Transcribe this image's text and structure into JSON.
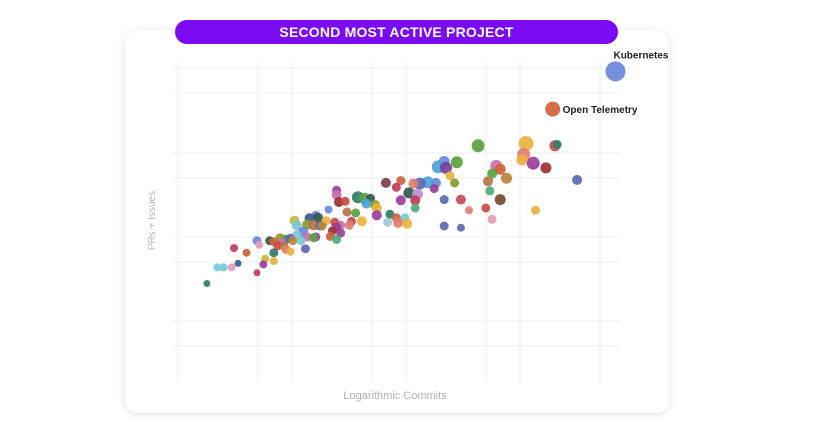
{
  "chart_data": {
    "type": "scatter",
    "title": "SECOND MOST ACTIVE PROJECT",
    "xlabel": "Logarithmic Commits",
    "ylabel": "PRs + Issues",
    "xscale": "log",
    "yscale": "log",
    "xlim": [
      0,
      100
    ],
    "ylim": [
      0,
      100
    ],
    "grid": true,
    "annotations": [
      {
        "label": "Kubernetes",
        "point_index": 0
      },
      {
        "label": "Open Telemetry",
        "point_index": 1
      }
    ],
    "points": [
      {
        "x": 99.0,
        "y": 95.4,
        "s": 10,
        "c": "#6a87d8"
      },
      {
        "x": 85.1,
        "y": 84.1,
        "s": 7.5,
        "c": "#d0623a"
      },
      {
        "x": 79.2,
        "y": 73.8,
        "s": 7.5,
        "c": "#e8b23f"
      },
      {
        "x": 78.7,
        "y": 70.5,
        "s": 6.5,
        "c": "#e07f6e"
      },
      {
        "x": 78.3,
        "y": 68.9,
        "s": 5.5,
        "c": "#e8b23f"
      },
      {
        "x": 85.6,
        "y": 73.1,
        "s": 5.5,
        "c": "#cc4a4a"
      },
      {
        "x": 86.1,
        "y": 73.5,
        "s": 4.5,
        "c": "#2f7d6a"
      },
      {
        "x": 68.6,
        "y": 73.1,
        "s": 6.5,
        "c": "#5aa23e"
      },
      {
        "x": 80.8,
        "y": 67.9,
        "s": 6.5,
        "c": "#9b3d9b"
      },
      {
        "x": 83.6,
        "y": 66.5,
        "s": 5.5,
        "c": "#9e2f2f"
      },
      {
        "x": 90.5,
        "y": 62.9,
        "s": 5,
        "c": "#5c68b3"
      },
      {
        "x": 61.1,
        "y": 68.4,
        "s": 5.5,
        "c": "#6a87d8"
      },
      {
        "x": 63.9,
        "y": 68.2,
        "s": 6,
        "c": "#5aa23e"
      },
      {
        "x": 59.8,
        "y": 66.8,
        "s": 6.5,
        "c": "#4aa3d8"
      },
      {
        "x": 61.5,
        "y": 66.5,
        "s": 6,
        "c": "#7a3fa0"
      },
      {
        "x": 72.6,
        "y": 67.1,
        "s": 6,
        "c": "#c96fa8"
      },
      {
        "x": 73.5,
        "y": 66.1,
        "s": 5.5,
        "c": "#d0623a"
      },
      {
        "x": 71.7,
        "y": 64.8,
        "s": 5,
        "c": "#5aa23e"
      },
      {
        "x": 74.9,
        "y": 63.4,
        "s": 5.5,
        "c": "#b8863b"
      },
      {
        "x": 70.8,
        "y": 62.5,
        "s": 5,
        "c": "#b8734a"
      },
      {
        "x": 62.4,
        "y": 64.2,
        "s": 4.5,
        "c": "#e8b23f"
      },
      {
        "x": 63.4,
        "y": 62.0,
        "s": 4.5,
        "c": "#8a9b2b"
      },
      {
        "x": 59.3,
        "y": 62.0,
        "s": 5,
        "c": "#6a87d8"
      },
      {
        "x": 57.5,
        "y": 62.2,
        "s": 6,
        "c": "#4aa3d8"
      },
      {
        "x": 55.7,
        "y": 61.8,
        "s": 6,
        "c": "#5c68b3"
      },
      {
        "x": 54.3,
        "y": 61.8,
        "s": 5,
        "c": "#e07f6e"
      },
      {
        "x": 51.5,
        "y": 62.7,
        "s": 4.5,
        "c": "#d0623a"
      },
      {
        "x": 48.2,
        "y": 62.0,
        "s": 5,
        "c": "#7a3f4a"
      },
      {
        "x": 50.5,
        "y": 60.7,
        "s": 4.5,
        "c": "#c23a5a"
      },
      {
        "x": 58.9,
        "y": 60.3,
        "s": 4.5,
        "c": "#9b3d9b"
      },
      {
        "x": 71.2,
        "y": 59.6,
        "s": 4.5,
        "c": "#4aab7a"
      },
      {
        "x": 53.3,
        "y": 59.0,
        "s": 5.5,
        "c": "#2f5b4a"
      },
      {
        "x": 55.2,
        "y": 58.6,
        "s": 5.5,
        "c": "#b88fd8"
      },
      {
        "x": 37.3,
        "y": 59.8,
        "s": 4.5,
        "c": "#9b3d9b"
      },
      {
        "x": 37.3,
        "y": 58.4,
        "s": 5,
        "c": "#c96fa8"
      },
      {
        "x": 42.0,
        "y": 57.7,
        "s": 6,
        "c": "#2f7d6a"
      },
      {
        "x": 43.4,
        "y": 57.4,
        "s": 5.5,
        "c": "#5aa23e"
      },
      {
        "x": 44.8,
        "y": 57.4,
        "s": 4.5,
        "c": "#2f5b4a"
      },
      {
        "x": 43.9,
        "y": 55.8,
        "s": 5,
        "c": "#4aa3d8"
      },
      {
        "x": 45.8,
        "y": 55.4,
        "s": 5,
        "c": "#8a9b2b"
      },
      {
        "x": 51.5,
        "y": 56.8,
        "s": 5,
        "c": "#9b3d9b"
      },
      {
        "x": 54.7,
        "y": 56.8,
        "s": 5,
        "c": "#c23a5a"
      },
      {
        "x": 61.1,
        "y": 57.0,
        "s": 4.5,
        "c": "#5c68b3"
      },
      {
        "x": 64.8,
        "y": 57.0,
        "s": 5,
        "c": "#c94a5a"
      },
      {
        "x": 73.5,
        "y": 57.0,
        "s": 5.5,
        "c": "#7a4a2f"
      },
      {
        "x": 37.8,
        "y": 56.3,
        "s": 5,
        "c": "#9e2f2f"
      },
      {
        "x": 39.2,
        "y": 56.5,
        "s": 4.5,
        "c": "#cc4a4a"
      },
      {
        "x": 46.2,
        "y": 54.5,
        "s": 5,
        "c": "#e8b23f"
      },
      {
        "x": 54.7,
        "y": 54.5,
        "s": 4.5,
        "c": "#4aab7a"
      },
      {
        "x": 70.3,
        "y": 54.5,
        "s": 4.5,
        "c": "#cc4a4a"
      },
      {
        "x": 66.6,
        "y": 53.8,
        "s": 4,
        "c": "#e07f6e"
      },
      {
        "x": 81.3,
        "y": 53.8,
        "s": 4.5,
        "c": "#e8b23f"
      },
      {
        "x": 35.5,
        "y": 54.0,
        "s": 4,
        "c": "#6a87d8"
      },
      {
        "x": 39.6,
        "y": 53.3,
        "s": 4.5,
        "c": "#b8734a"
      },
      {
        "x": 41.5,
        "y": 53.0,
        "s": 4.5,
        "c": "#5aa23e"
      },
      {
        "x": 32.7,
        "y": 52.3,
        "s": 4.5,
        "c": "#6a87d8"
      },
      {
        "x": 33.2,
        "y": 51.6,
        "s": 5,
        "c": "#2f5b4a"
      },
      {
        "x": 31.3,
        "y": 51.4,
        "s": 5,
        "c": "#3a5b8a"
      },
      {
        "x": 46.2,
        "y": 52.3,
        "s": 5,
        "c": "#9b3d9b"
      },
      {
        "x": 49.1,
        "y": 52.6,
        "s": 4.5,
        "c": "#2f7d6a"
      },
      {
        "x": 50.5,
        "y": 51.6,
        "s": 4.5,
        "c": "#d0623a"
      },
      {
        "x": 52.4,
        "y": 51.6,
        "s": 4.5,
        "c": "#7bc8d8"
      },
      {
        "x": 71.7,
        "y": 51.1,
        "s": 4.5,
        "c": "#e59ab8"
      },
      {
        "x": 28.0,
        "y": 50.7,
        "s": 5,
        "c": "#c9b63a"
      },
      {
        "x": 35.0,
        "y": 50.7,
        "s": 4.5,
        "c": "#e8b23f"
      },
      {
        "x": 36.9,
        "y": 50.2,
        "s": 4.5,
        "c": "#cc4a4a"
      },
      {
        "x": 40.6,
        "y": 50.5,
        "s": 4.5,
        "c": "#c94a5a"
      },
      {
        "x": 42.9,
        "y": 50.5,
        "s": 5,
        "c": "#e8b23f"
      },
      {
        "x": 48.6,
        "y": 50.2,
        "s": 4.5,
        "c": "#9ec8d8"
      },
      {
        "x": 50.9,
        "y": 50.0,
        "s": 5,
        "c": "#e07f6e"
      },
      {
        "x": 52.9,
        "y": 49.8,
        "s": 5,
        "c": "#e8b23f"
      },
      {
        "x": 28.5,
        "y": 49.3,
        "s": 5,
        "c": "#7bc8d8"
      },
      {
        "x": 30.8,
        "y": 49.5,
        "s": 5,
        "c": "#8a9b2b"
      },
      {
        "x": 32.2,
        "y": 49.3,
        "s": 5,
        "c": "#b8734a"
      },
      {
        "x": 33.6,
        "y": 49.1,
        "s": 4.5,
        "c": "#5c68b3"
      },
      {
        "x": 34.1,
        "y": 49.1,
        "s": 4.5,
        "c": "#b8863b"
      },
      {
        "x": 38.2,
        "y": 49.3,
        "s": 4.5,
        "c": "#c96fa8"
      },
      {
        "x": 40.1,
        "y": 49.3,
        "s": 4.5,
        "c": "#e07f6e"
      },
      {
        "x": 37.3,
        "y": 48.9,
        "s": 4.5,
        "c": "#9b3d9b"
      },
      {
        "x": 61.1,
        "y": 49.1,
        "s": 4.5,
        "c": "#5c68b3"
      },
      {
        "x": 64.8,
        "y": 48.6,
        "s": 4,
        "c": "#5c68b3"
      },
      {
        "x": 29.9,
        "y": 47.4,
        "s": 5,
        "c": "#6a87d8"
      },
      {
        "x": 36.4,
        "y": 47.7,
        "s": 4.5,
        "c": "#9e2f2f"
      },
      {
        "x": 28.5,
        "y": 46.5,
        "s": 4.5,
        "c": "#7bc8d8"
      },
      {
        "x": 38.2,
        "y": 47.0,
        "s": 4.5,
        "c": "#9b3d9b"
      },
      {
        "x": 30.8,
        "y": 45.8,
        "s": 4.5,
        "c": "#c96fa8"
      },
      {
        "x": 32.7,
        "y": 45.8,
        "s": 4.5,
        "c": "#9b3d9b"
      },
      {
        "x": 32.2,
        "y": 45.6,
        "s": 4.5,
        "c": "#5aa23e"
      },
      {
        "x": 35.9,
        "y": 46.0,
        "s": 4.5,
        "c": "#d0623a"
      },
      {
        "x": 37.3,
        "y": 45.1,
        "s": 4.5,
        "c": "#4aab7a"
      },
      {
        "x": 26.1,
        "y": 45.1,
        "s": 4.5,
        "c": "#2f7d6a"
      },
      {
        "x": 27.1,
        "y": 45.6,
        "s": 4,
        "c": "#5c68b3"
      },
      {
        "x": 24.8,
        "y": 45.6,
        "s": 4.5,
        "c": "#8a9b2b"
      },
      {
        "x": 22.5,
        "y": 44.7,
        "s": 4.5,
        "c": "#2f5b4a"
      },
      {
        "x": 23.4,
        "y": 44.4,
        "s": 4.5,
        "c": "#d0623a"
      },
      {
        "x": 27.6,
        "y": 44.7,
        "s": 4.5,
        "c": "#b8863b"
      },
      {
        "x": 29.4,
        "y": 44.7,
        "s": 4.5,
        "c": "#7bc8d8"
      },
      {
        "x": 25.2,
        "y": 44.2,
        "s": 4.5,
        "c": "#c96fa8"
      },
      {
        "x": 19.7,
        "y": 44.7,
        "s": 4.5,
        "c": "#6a87d8"
      },
      {
        "x": 20.2,
        "y": 43.5,
        "s": 4,
        "c": "#e59ab8"
      },
      {
        "x": 24.3,
        "y": 43.2,
        "s": 4.5,
        "c": "#cc4a4a"
      },
      {
        "x": 25.7,
        "y": 43.0,
        "s": 4.5,
        "c": "#b8734a"
      },
      {
        "x": 26.1,
        "y": 42.1,
        "s": 4.5,
        "c": "#e07f6e"
      },
      {
        "x": 27.1,
        "y": 41.4,
        "s": 4,
        "c": "#e8b23f"
      },
      {
        "x": 30.4,
        "y": 42.3,
        "s": 4.5,
        "c": "#5c68b3"
      },
      {
        "x": 23.4,
        "y": 41.1,
        "s": 4.5,
        "c": "#2f7d6a"
      },
      {
        "x": 14.6,
        "y": 42.5,
        "s": 4,
        "c": "#c23a5a"
      },
      {
        "x": 17.4,
        "y": 41.1,
        "s": 4,
        "c": "#d0623a"
      },
      {
        "x": 21.5,
        "y": 39.3,
        "s": 4,
        "c": "#c9b63a"
      },
      {
        "x": 23.4,
        "y": 38.6,
        "s": 4,
        "c": "#e8b23f"
      },
      {
        "x": 21.1,
        "y": 37.6,
        "s": 4,
        "c": "#9b3d9b"
      },
      {
        "x": 15.5,
        "y": 37.9,
        "s": 3.5,
        "c": "#3a5b8a"
      },
      {
        "x": 10.9,
        "y": 36.7,
        "s": 4,
        "c": "#7bc8d8"
      },
      {
        "x": 12.3,
        "y": 36.7,
        "s": 4,
        "c": "#7bc8d8"
      },
      {
        "x": 14.1,
        "y": 36.7,
        "s": 4,
        "c": "#e59ab8"
      },
      {
        "x": 19.7,
        "y": 35.1,
        "s": 3.5,
        "c": "#c23a5a"
      },
      {
        "x": 8.6,
        "y": 31.9,
        "s": 3.5,
        "c": "#2f7d6a"
      }
    ]
  }
}
